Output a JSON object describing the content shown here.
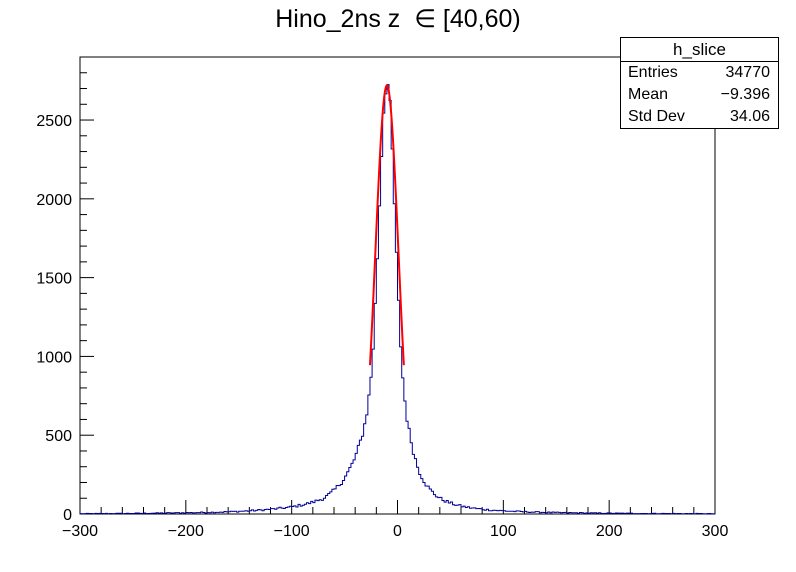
{
  "chart_data": {
    "type": "histogram",
    "title": "Hino_2ns z  ∈ [40,60)",
    "xlim": [
      -300,
      300
    ],
    "ylim": [
      0,
      2900
    ],
    "x_ticks": [
      "−300",
      "−200",
      "−100",
      "0",
      "100",
      "200",
      "300"
    ],
    "x_tick_values": [
      -300,
      -200,
      -100,
      0,
      100,
      200,
      300
    ],
    "y_ticks": [
      "0",
      "500",
      "1000",
      "1500",
      "2000",
      "2500"
    ],
    "y_tick_values": [
      0,
      500,
      1000,
      1500,
      2000,
      2500
    ],
    "bin_width": 2,
    "peak_x": -10,
    "peak_height": 2740,
    "profile": [
      [
        -300,
        2
      ],
      [
        -250,
        4
      ],
      [
        -200,
        8
      ],
      [
        -180,
        10
      ],
      [
        -160,
        14
      ],
      [
        -140,
        20
      ],
      [
        -120,
        30
      ],
      [
        -100,
        45
      ],
      [
        -80,
        75
      ],
      [
        -70,
        100
      ],
      [
        -60,
        150
      ],
      [
        -50,
        230
      ],
      [
        -40,
        360
      ],
      [
        -35,
        460
      ],
      [
        -30,
        600
      ],
      [
        -26,
        800
      ],
      [
        -24,
        950
      ],
      [
        -22,
        1180
      ],
      [
        -20,
        1480
      ],
      [
        -18,
        1800
      ],
      [
        -16,
        2150
      ],
      [
        -14,
        2450
      ],
      [
        -12,
        2680
      ],
      [
        -10,
        2740
      ],
      [
        -8,
        2700
      ],
      [
        -6,
        2450
      ],
      [
        -4,
        2150
      ],
      [
        -2,
        1800
      ],
      [
        0,
        1480
      ],
      [
        2,
        1200
      ],
      [
        4,
        960
      ],
      [
        6,
        780
      ],
      [
        10,
        560
      ],
      [
        14,
        430
      ],
      [
        20,
        280
      ],
      [
        30,
        160
      ],
      [
        40,
        100
      ],
      [
        50,
        70
      ],
      [
        60,
        50
      ],
      [
        80,
        30
      ],
      [
        100,
        20
      ],
      [
        120,
        14
      ],
      [
        150,
        9
      ],
      [
        200,
        5
      ],
      [
        250,
        3
      ],
      [
        300,
        2
      ]
    ],
    "fit": {
      "type": "gaussian",
      "color": "#ff0000",
      "mean": -10,
      "sigma": 11,
      "amplitude": 2720,
      "range": [
        -26,
        6
      ]
    },
    "hist_color": "#000099"
  },
  "stats_box": {
    "name": "h_slice",
    "rows": [
      {
        "label": "Entries",
        "value": "34770"
      },
      {
        "label": "Mean",
        "value": "−9.396"
      },
      {
        "label": "Std Dev",
        "value": "34.06"
      }
    ]
  }
}
